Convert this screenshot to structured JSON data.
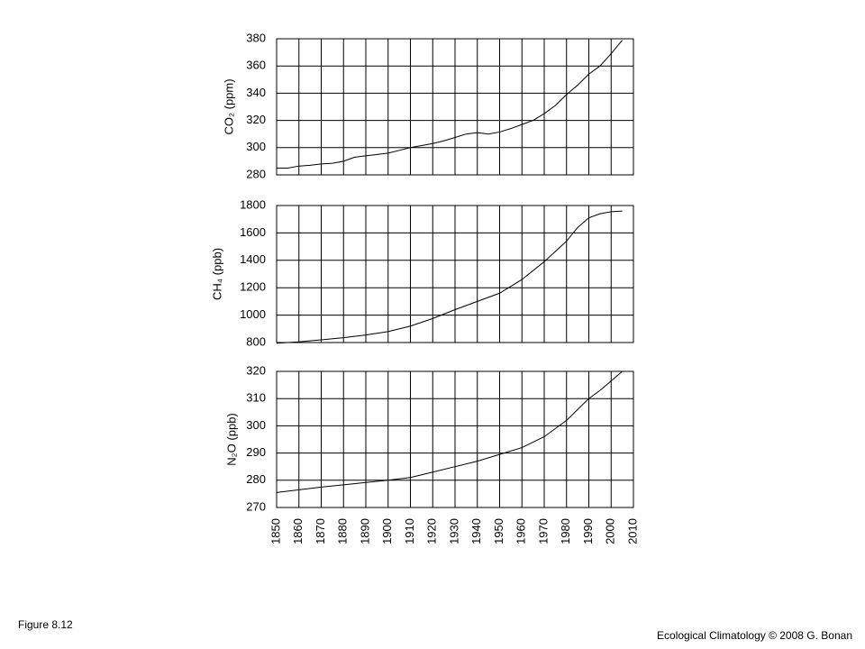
{
  "chart_data": [
    {
      "type": "line",
      "ylabel": "CO₂ (ppm)",
      "xlim": [
        1850,
        2010
      ],
      "xticks": [
        1850,
        1860,
        1870,
        1880,
        1890,
        1900,
        1910,
        1920,
        1930,
        1940,
        1950,
        1960,
        1970,
        1980,
        1990,
        2000,
        2010
      ],
      "xtick_labels": false,
      "ylim": [
        280,
        380
      ],
      "yticks": [
        280,
        300,
        320,
        340,
        360,
        380
      ],
      "grid": true,
      "x": [
        1850,
        1855,
        1860,
        1865,
        1870,
        1875,
        1880,
        1885,
        1890,
        1895,
        1900,
        1905,
        1910,
        1915,
        1920,
        1925,
        1930,
        1935,
        1940,
        1945,
        1950,
        1955,
        1960,
        1965,
        1970,
        1975,
        1980,
        1985,
        1990,
        1995,
        2000,
        2005
      ],
      "series": [
        {
          "color": "#000000",
          "values": [
            285,
            285,
            286.5,
            287,
            288,
            288.5,
            290,
            293,
            294,
            295,
            296,
            298,
            300,
            301.5,
            303,
            305,
            307.5,
            310,
            311,
            310,
            311.5,
            314,
            317,
            320,
            325,
            331,
            339,
            346,
            354,
            360,
            369,
            379
          ]
        }
      ]
    },
    {
      "type": "line",
      "ylabel": "CH₄ (ppb)",
      "xlim": [
        1850,
        2010
      ],
      "xticks": [
        1850,
        1860,
        1870,
        1880,
        1890,
        1900,
        1910,
        1920,
        1930,
        1940,
        1950,
        1960,
        1970,
        1980,
        1990,
        2000,
        2010
      ],
      "xtick_labels": false,
      "ylim": [
        800,
        1800
      ],
      "yticks": [
        800,
        1000,
        1200,
        1400,
        1600,
        1800
      ],
      "grid": true,
      "x": [
        1850,
        1860,
        1870,
        1880,
        1890,
        1900,
        1910,
        1920,
        1930,
        1940,
        1950,
        1960,
        1970,
        1980,
        1985,
        1990,
        1995,
        2000,
        2005
      ],
      "series": [
        {
          "color": "#000000",
          "values": [
            795,
            805,
            820,
            835,
            855,
            880,
            920,
            975,
            1040,
            1100,
            1160,
            1260,
            1390,
            1540,
            1640,
            1710,
            1740,
            1755,
            1760
          ]
        }
      ]
    },
    {
      "type": "line",
      "ylabel": "N₂O (ppb)",
      "xlim": [
        1850,
        2010
      ],
      "xticks": [
        1850,
        1860,
        1870,
        1880,
        1890,
        1900,
        1910,
        1920,
        1930,
        1940,
        1950,
        1960,
        1970,
        1980,
        1990,
        2000,
        2010
      ],
      "xtick_labels": true,
      "ylim": [
        270,
        320
      ],
      "yticks": [
        270,
        280,
        290,
        300,
        310,
        320
      ],
      "grid": true,
      "x": [
        1850,
        1860,
        1870,
        1880,
        1890,
        1900,
        1910,
        1920,
        1930,
        1940,
        1950,
        1960,
        1970,
        1980,
        1985,
        1990,
        1995,
        2000,
        2005
      ],
      "series": [
        {
          "color": "#000000",
          "values": [
            275.5,
            276.5,
            277.5,
            278.3,
            279.2,
            280,
            281,
            283,
            285,
            287,
            289.5,
            292,
            296,
            302,
            306,
            310,
            313,
            316.5,
            320
          ]
        }
      ]
    }
  ],
  "footer": {
    "figure": "Figure 8.12",
    "credit": "Ecological Climatology © 2008 G. Bonan"
  }
}
